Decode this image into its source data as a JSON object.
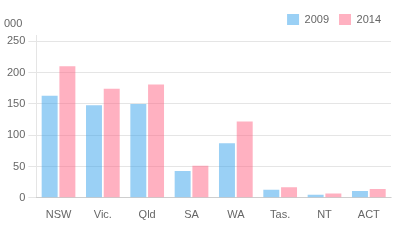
{
  "chart_data": {
    "type": "bar",
    "ylabel": "000",
    "categories": [
      "NSW",
      "Vic.",
      "Qld",
      "SA",
      "WA",
      "Tas.",
      "NT",
      "ACT"
    ],
    "series": [
      {
        "name": "2009",
        "values": [
          163,
          148,
          150,
          43,
          87,
          13,
          5,
          11
        ]
      },
      {
        "name": "2014",
        "values": [
          210,
          174,
          181,
          51,
          122,
          17,
          7,
          14
        ]
      }
    ],
    "ylim": [
      0,
      260
    ],
    "yticks": [
      0,
      50,
      100,
      150,
      200,
      250
    ],
    "grid": true,
    "legend": "upper right"
  }
}
